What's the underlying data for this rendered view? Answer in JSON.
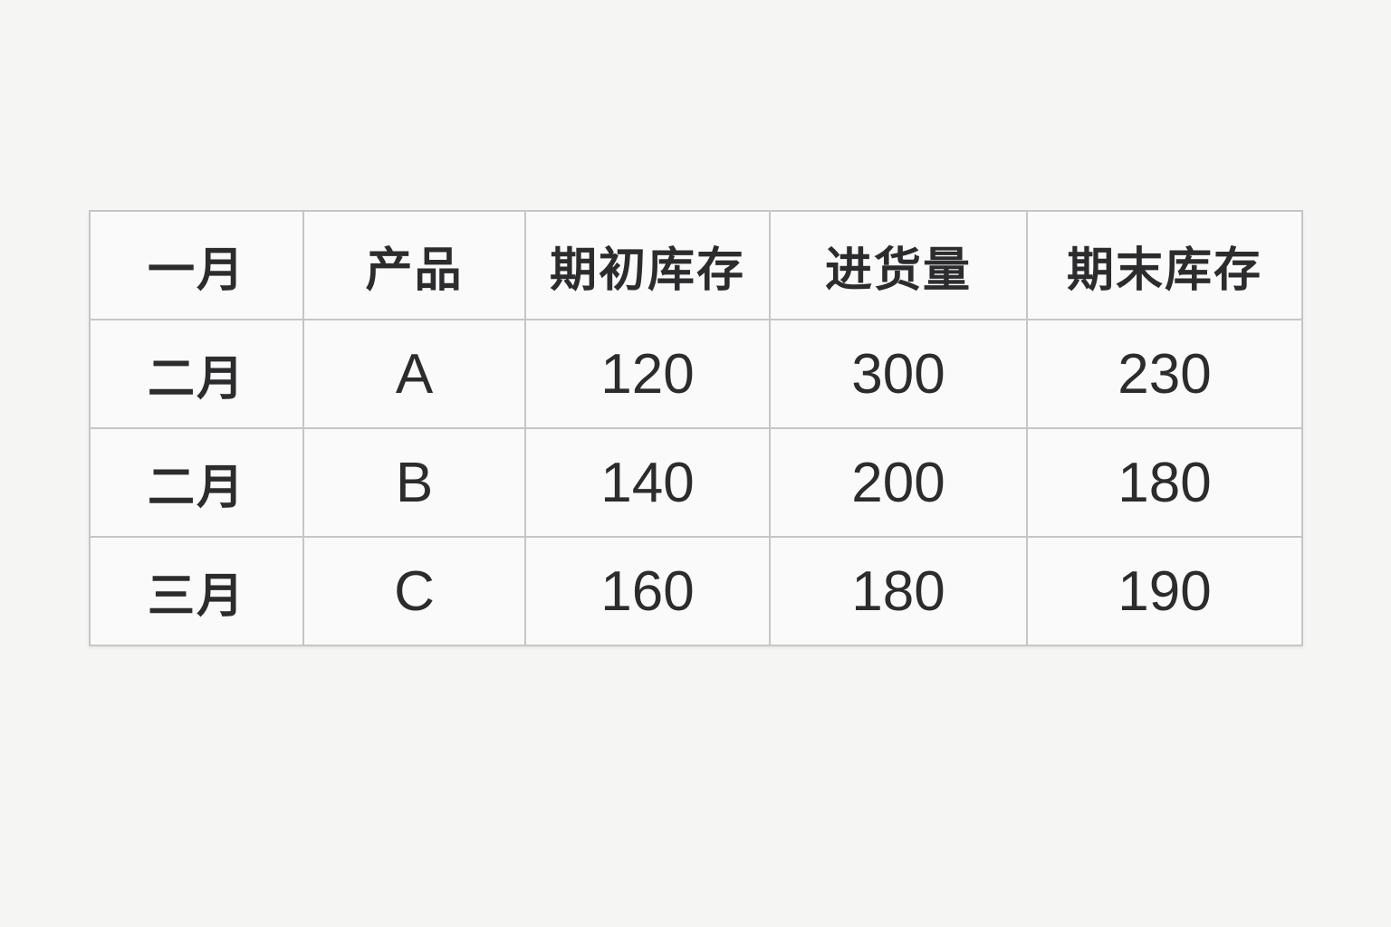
{
  "page": {
    "background_color": "#f5f5f4"
  },
  "colors": {
    "cell_background": "#fafafa",
    "border": "#c6c6c6",
    "text": "#2c2c2e"
  },
  "chart_data": {
    "type": "table",
    "title": "",
    "columns": [
      "一月",
      "产品",
      "期初库存",
      "进货量",
      "期末库存"
    ],
    "rows": [
      [
        "二月",
        "A",
        "120",
        "300",
        "230"
      ],
      [
        "二月",
        "B",
        "140",
        "200",
        "180"
      ],
      [
        "三月",
        "C",
        "160",
        "180",
        "190"
      ]
    ],
    "layout": {
      "grid": "on",
      "header_row_bold": true,
      "first_column_bold": true
    }
  }
}
